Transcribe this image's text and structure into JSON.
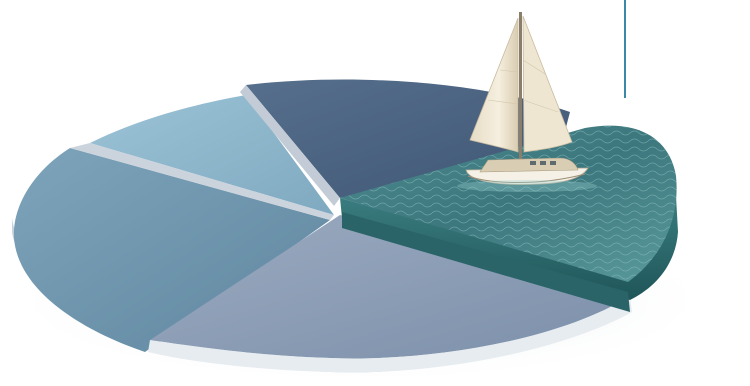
{
  "scene": {
    "subject": "pie-with-water-slice-and-sailboat",
    "palette": {
      "background": "#ffffff",
      "accent_line": "#3a88a8",
      "slice_dark_navy": "#4b6482",
      "slice_light_blue": "#8fb6cb",
      "slice_mid_blue": "#6e95ad",
      "slice_grey_blue": "#8d9fb6",
      "water_top": "#3f7f86",
      "water_side": "#2d6e72",
      "sail": "#f2ead8",
      "hull": "#f6f1e6"
    },
    "icons": [
      "sailboat-icon",
      "water-wave-icon"
    ]
  }
}
